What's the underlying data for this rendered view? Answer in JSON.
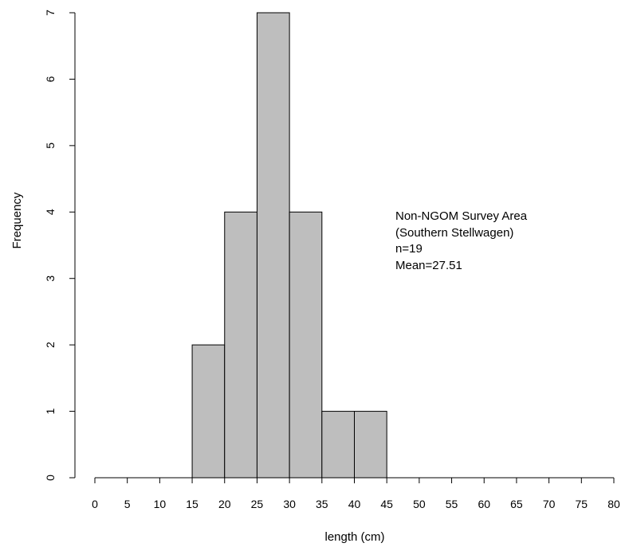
{
  "chart_data": {
    "type": "bar",
    "xlabel": "length (cm)",
    "ylabel": "Frequency",
    "bin_edges": [
      0,
      5,
      10,
      15,
      20,
      25,
      30,
      35,
      40,
      45,
      50,
      55,
      60,
      65,
      70,
      75,
      80
    ],
    "values": [
      0,
      0,
      0,
      2,
      4,
      7,
      4,
      1,
      1,
      0,
      0,
      0,
      0,
      0,
      0,
      0
    ],
    "xlim": [
      0,
      80
    ],
    "ylim": [
      0,
      7
    ],
    "x_ticks": [
      "0",
      "5",
      "10",
      "15",
      "20",
      "25",
      "30",
      "35",
      "40",
      "45",
      "50",
      "55",
      "60",
      "65",
      "70",
      "75",
      "80"
    ],
    "y_ticks": [
      "0",
      "1",
      "2",
      "3",
      "4",
      "5",
      "6",
      "7"
    ],
    "bar_color": "#bebebe",
    "grid": false,
    "annotations": [
      "Non-NGOM Survey Area",
      "(Southern Stellwagen)",
      "n=19",
      "Mean=27.51"
    ]
  }
}
